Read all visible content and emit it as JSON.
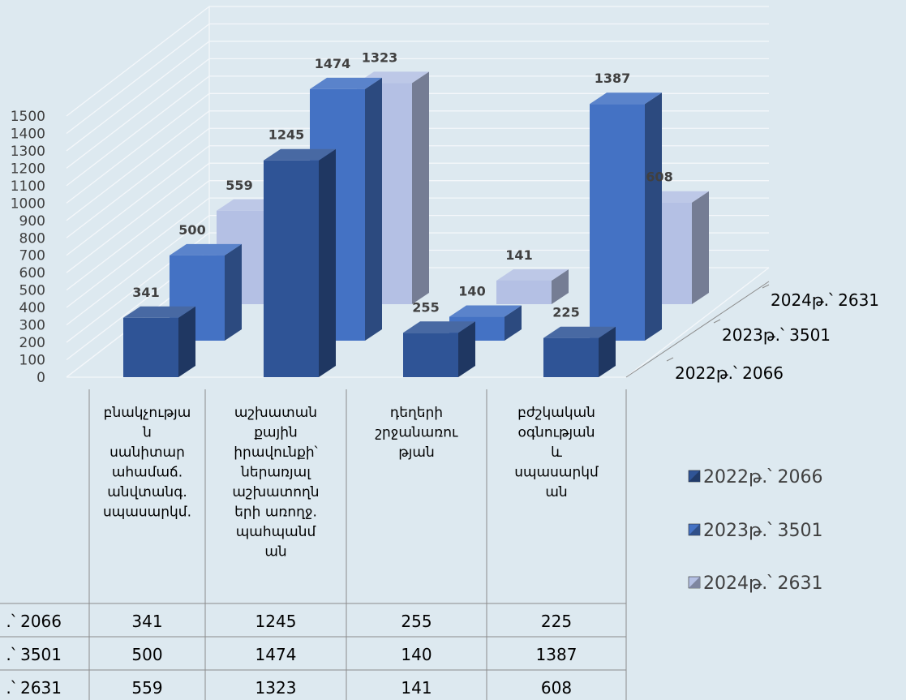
{
  "chart_data": {
    "type": "bar",
    "categories": [
      [
        "բնակչությա",
        "ն",
        "սանիտար",
        "ահամաճ.",
        "անվտանգ.",
        "սպասարկմ."
      ],
      [
        "աշխատան",
        "քային",
        "իրավունքի՝",
        "ներառյալ",
        "աշխատողն",
        "երի առողջ.",
        "պահպանմ",
        "ան"
      ],
      [
        "դեղերի",
        "շրջանառու",
        "թյան"
      ],
      [
        "բժշկական",
        "օգնության",
        "և",
        "սպասարկմ",
        "ան"
      ]
    ],
    "series": [
      {
        "name": "2022թ.՝ 2066",
        "values": [
          341,
          1245,
          255,
          225
        ],
        "color": "#2f5496"
      },
      {
        "name": "2023թ.՝ 3501",
        "values": [
          500,
          1474,
          140,
          1387
        ],
        "color": "#4472c4"
      },
      {
        "name": "2024թ.՝ 2631",
        "values": [
          559,
          1323,
          141,
          608
        ],
        "color": "#b4c0e4"
      }
    ],
    "y_ticks": [
      0,
      100,
      200,
      300,
      400,
      500,
      600,
      700,
      800,
      900,
      1000,
      1100,
      1200,
      1300,
      1400,
      1500
    ],
    "ylim": [
      0,
      1500
    ],
    "depth_labels": [
      "2024թ.՝ 2631",
      "2023թ.՝ 3501",
      "2022թ.՝ 2066"
    ],
    "table_row_labels": [
      "․՝ 2066",
      "․՝ 3501",
      "․՝ 2631"
    ],
    "legend_position": "right",
    "grid": true
  }
}
